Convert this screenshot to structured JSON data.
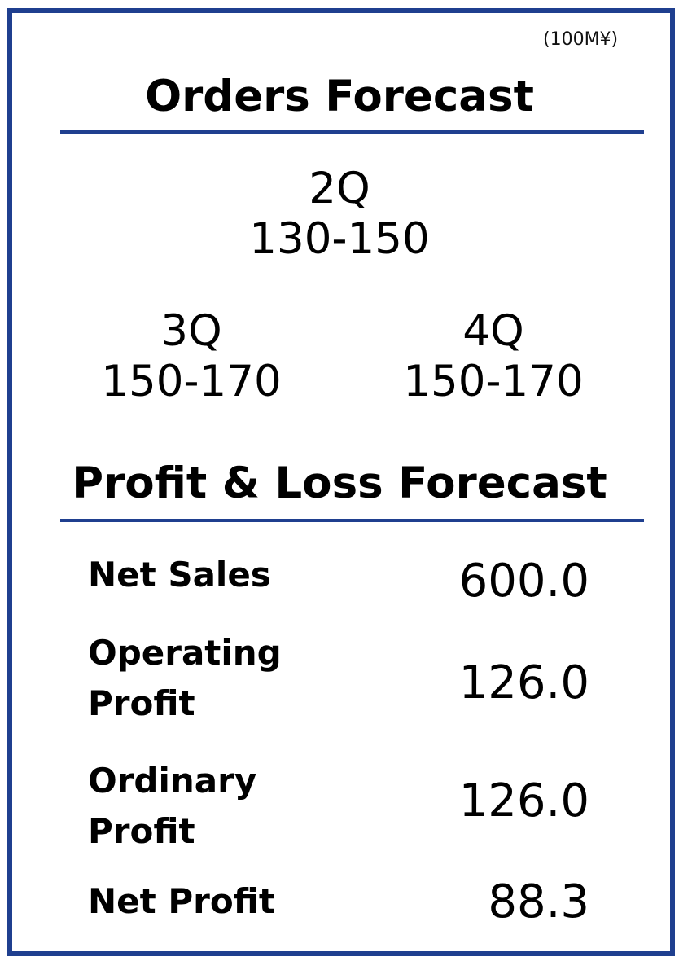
{
  "unit_label": "(100M¥)",
  "orders": {
    "title": "Orders Forecast",
    "quarters": [
      {
        "quarter": "2Q",
        "range": "130-150"
      },
      {
        "quarter": "3Q",
        "range": "150-170"
      },
      {
        "quarter": "4Q",
        "range": "150-170"
      }
    ]
  },
  "pl": {
    "title": "Profit & Loss Forecast",
    "rows": [
      {
        "label_lines": [
          "Net Sales"
        ],
        "value": "600.0"
      },
      {
        "label_lines": [
          "Operating",
          "Profit"
        ],
        "value": "126.0"
      },
      {
        "label_lines": [
          "Ordinary",
          "Profit"
        ],
        "value": "126.0"
      },
      {
        "label_lines": [
          "Net Profit"
        ],
        "value": "88.3"
      }
    ]
  },
  "colors": {
    "accent_blue": "#1f3f8f"
  }
}
